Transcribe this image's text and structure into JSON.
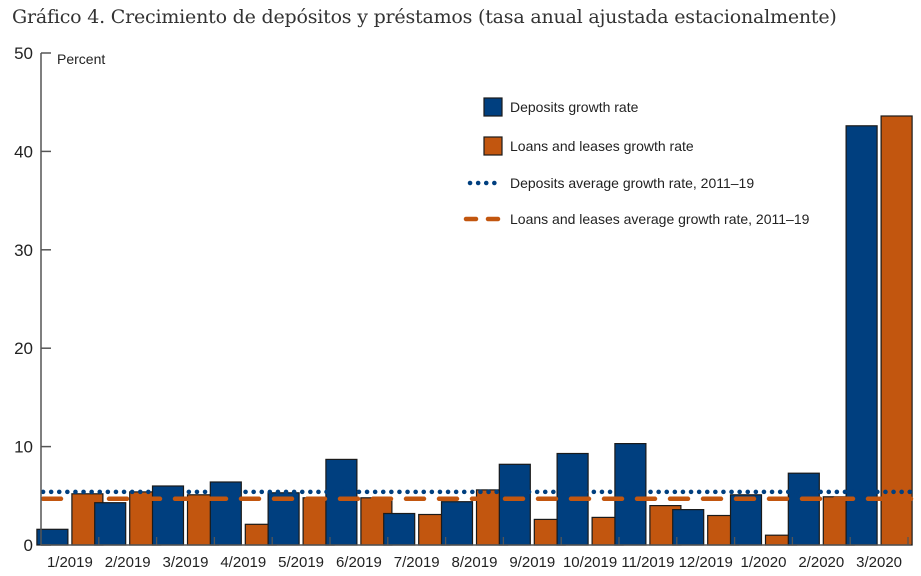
{
  "title": "Gráfico 4. Crecimiento de depósitos y préstamos (tasa anual ajustada estacionalmente)",
  "chart_data": {
    "type": "bar",
    "title": "Gráfico 4. Crecimiento de depósitos y préstamos (tasa anual ajustada estacionalmente)",
    "ylabel": "Percent",
    "xlabel": "",
    "ylim": [
      0,
      50
    ],
    "yticks": [
      0,
      10,
      20,
      30,
      40,
      50
    ],
    "grid": false,
    "legend_position": "top-right",
    "categories": [
      "1/2019",
      "2/2019",
      "3/2019",
      "4/2019",
      "5/2019",
      "6/2019",
      "7/2019",
      "8/2019",
      "9/2019",
      "10/2019",
      "11/2019",
      "12/2019",
      "1/2020",
      "2/2020",
      "3/2020"
    ],
    "series": [
      {
        "name": "Deposits growth rate",
        "kind": "bar",
        "color": "#003f7f",
        "values": [
          1.6,
          4.3,
          6.0,
          6.4,
          5.3,
          8.7,
          3.2,
          4.4,
          8.2,
          9.3,
          10.3,
          3.6,
          5.1,
          7.3,
          42.6
        ]
      },
      {
        "name": "Loans and leases growth rate",
        "kind": "bar",
        "color": "#c2560f",
        "values": [
          5.2,
          5.4,
          5.1,
          2.1,
          4.8,
          4.8,
          3.1,
          5.6,
          2.6,
          2.8,
          4.0,
          3.0,
          1.0,
          4.9,
          43.6
        ]
      }
    ],
    "reference_lines": [
      {
        "name": "Deposits average growth rate, 2011–19",
        "style": "dotted",
        "color": "#003f7f",
        "value": 5.4
      },
      {
        "name": "Loans and leases average growth rate, 2011–19",
        "style": "dashed",
        "color": "#c2560f",
        "value": 4.7
      }
    ]
  }
}
